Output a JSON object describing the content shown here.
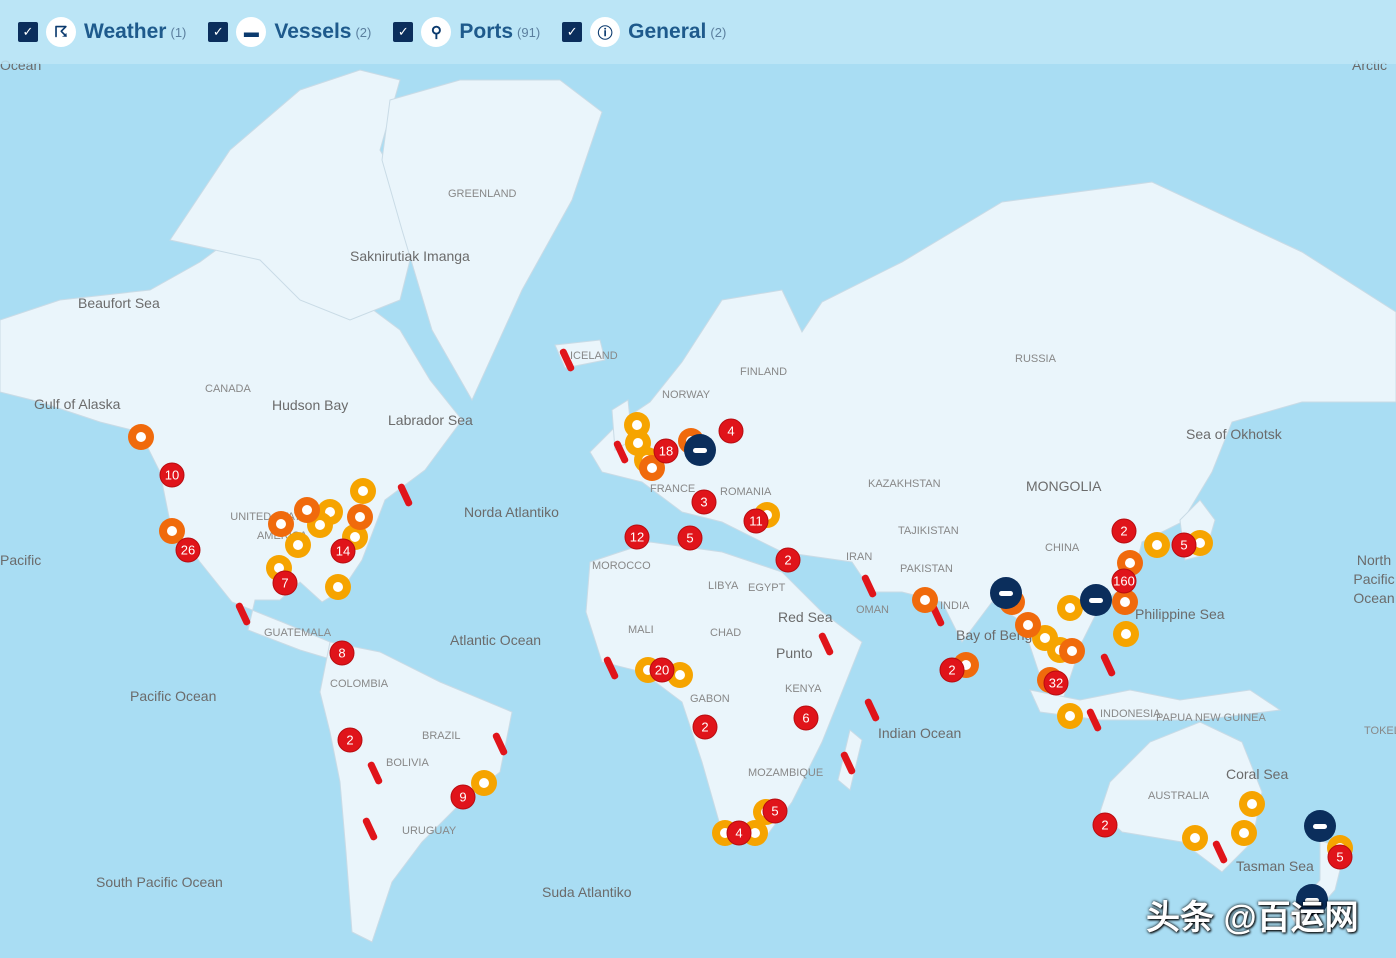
{
  "filters": [
    {
      "label": "Weather",
      "count": "(1)",
      "icon": "cyclone-icon",
      "glyph": "☈"
    },
    {
      "label": "Vessels",
      "count": "(2)",
      "icon": "vessel-icon",
      "glyph": "▬"
    },
    {
      "label": "Ports",
      "count": "(91)",
      "icon": "port-pin-icon",
      "glyph": "⚲"
    },
    {
      "label": "General",
      "count": "(2)",
      "icon": "info-icon",
      "glyph": "ⓘ"
    }
  ],
  "colors": {
    "sea": "#a9ddf3",
    "land": "#eaf5fb",
    "cluster_red": "#e0141a",
    "port_orange": "#f06a0c",
    "port_yellow": "#f6a400",
    "vessel_navy": "#0b2e5c"
  },
  "labels": [
    "Ocean",
    "Arctic",
    "GREENLAND",
    "Saknirutiak Imanga",
    "Beaufort Sea",
    "Gulf of Alaska",
    "CANADA",
    "Hudson Bay",
    "Labrador Sea",
    "UNITED STATES OF AMERICA",
    "Norda Atlantiko",
    "Pacific Ocean",
    "Atlantic Ocean",
    "South Pacific Ocean",
    "Suda Atlantiko",
    "ICELAND",
    "NORWAY",
    "FINLAND",
    "FRANCE",
    "ROMANIA",
    "MOROCCO",
    "LIBYA",
    "EGYPT",
    "MALI",
    "CHAD",
    "GABON",
    "KENYA",
    "MOZAMBIQUE",
    "Red Sea",
    "Indian Ocean",
    "RUSSIA",
    "KAZAKHSTAN",
    "MONGOLIA",
    "CHINA",
    "IRAN",
    "PAKISTAN",
    "TAJIKISTAN",
    "OMAN",
    "INDIA",
    "Bay of Bengal",
    "Sea of Okhotsk",
    "Philippine Sea",
    "North Pacific Ocean",
    "Coral Sea",
    "AUSTRALIA",
    "Tasman Sea",
    "PAPUA NEW GUINEA",
    "INDONESIA",
    "GUATEMALA",
    "COLOMBIA",
    "BRAZIL",
    "BOLIVIA",
    "URUGUAY",
    "Pacific",
    "TOKELAU",
    "Punto"
  ],
  "clusters": [
    "10",
    "26",
    "7",
    "14",
    "8",
    "2",
    "9",
    "18",
    "4",
    "3",
    "12",
    "5",
    "11",
    "2",
    "20",
    "2",
    "6",
    "5",
    "4",
    "2",
    "32",
    "2",
    "5",
    "160",
    "2",
    "5"
  ],
  "watermark": "头条 @百运网"
}
